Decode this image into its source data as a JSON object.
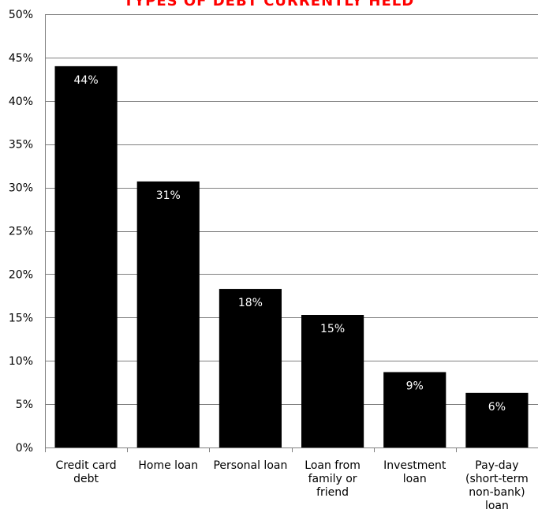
{
  "chart_data": {
    "type": "bar",
    "title": "TYPES OF DEBT CURRENTLY HELD",
    "categories": [
      [
        "Credit card",
        "debt"
      ],
      [
        "Home loan"
      ],
      [
        "Personal loan"
      ],
      [
        "Loan from",
        "family or",
        "friend"
      ],
      [
        "Investment",
        "loan"
      ],
      [
        "Pay-day",
        "(short-term",
        "non-bank)",
        "loan"
      ]
    ],
    "values": [
      44,
      30.7,
      18.3,
      15.3,
      8.7,
      6.3
    ],
    "data_labels": [
      "44%",
      "31%",
      "18%",
      "15%",
      "9%",
      "6%"
    ],
    "ylim": [
      0,
      50
    ],
    "yticks": [
      0,
      5,
      10,
      15,
      20,
      25,
      30,
      35,
      40,
      45,
      50
    ],
    "ytick_labels": [
      "0%",
      "5%",
      "10%",
      "15%",
      "20%",
      "25%",
      "30%",
      "35%",
      "40%",
      "45%",
      "50%"
    ],
    "xlabel": "",
    "ylabel": "",
    "grid": true,
    "legend": "none",
    "colors": {
      "bar": "#000000",
      "title": "#ff0000",
      "grid": "#808080",
      "data_label": "#ffffff"
    }
  }
}
